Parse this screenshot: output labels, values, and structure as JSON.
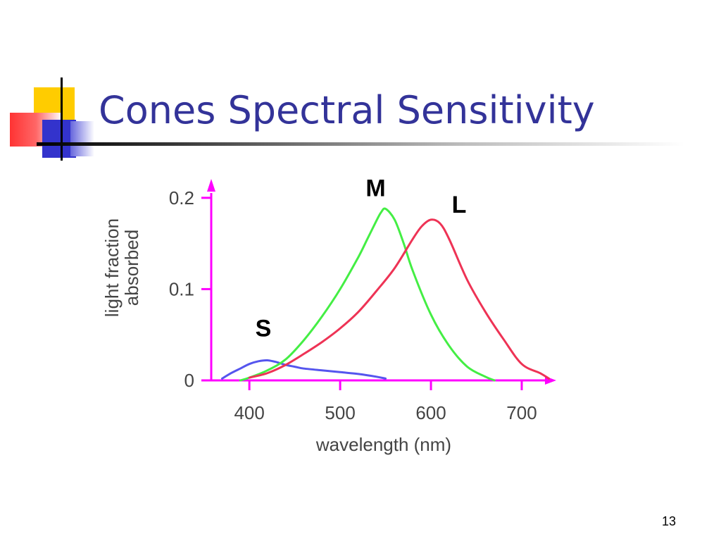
{
  "slide": {
    "title": "Cones Spectral Sensitivity",
    "page_number": "13"
  },
  "colors": {
    "title": "#333399",
    "axis": "#ff00ff",
    "s_curve": "#5555ee",
    "m_curve": "#44ee44",
    "l_curve": "#ee3355"
  },
  "chart_data": {
    "type": "line",
    "title": "",
    "xlabel": "wavelength (nm)",
    "ylabel_lines": [
      "light fraction",
      "absorbed"
    ],
    "xlim": [
      358,
      738
    ],
    "ylim": [
      0,
      0.213
    ],
    "x_ticks": [
      400,
      500,
      600,
      700
    ],
    "x_tick_labels": [
      "400",
      "500",
      "600",
      "700"
    ],
    "y_ticks": [
      0,
      0.1,
      0.2
    ],
    "y_tick_labels": [
      "0",
      "0.1",
      "0.2"
    ],
    "grid": false,
    "series": [
      {
        "name": "S",
        "color_key": "s_curve",
        "x": [
          370,
          380,
          390,
          400,
          410,
          420,
          430,
          440,
          450,
          460,
          480,
          500,
          520,
          540,
          550
        ],
        "y": [
          0.002,
          0.008,
          0.013,
          0.018,
          0.021,
          0.022,
          0.02,
          0.017,
          0.015,
          0.013,
          0.011,
          0.009,
          0.007,
          0.004,
          0.002
        ]
      },
      {
        "name": "M",
        "color_key": "m_curve",
        "x": [
          390,
          400,
          420,
          440,
          460,
          480,
          500,
          520,
          530,
          540,
          545,
          550,
          560,
          570,
          580,
          600,
          620,
          640,
          660,
          670
        ],
        "y": [
          0.0,
          0.003,
          0.011,
          0.023,
          0.044,
          0.07,
          0.1,
          0.135,
          0.155,
          0.175,
          0.184,
          0.188,
          0.176,
          0.15,
          0.12,
          0.072,
          0.038,
          0.015,
          0.004,
          0.0
        ]
      },
      {
        "name": "L",
        "color_key": "l_curve",
        "x": [
          400,
          420,
          440,
          460,
          480,
          500,
          520,
          540,
          560,
          580,
          590,
          600,
          610,
          620,
          640,
          660,
          680,
          700,
          720,
          730
        ],
        "y": [
          0.003,
          0.008,
          0.017,
          0.029,
          0.042,
          0.057,
          0.075,
          0.098,
          0.123,
          0.155,
          0.169,
          0.176,
          0.172,
          0.155,
          0.11,
          0.075,
          0.045,
          0.018,
          0.008,
          0.002
        ]
      }
    ]
  }
}
